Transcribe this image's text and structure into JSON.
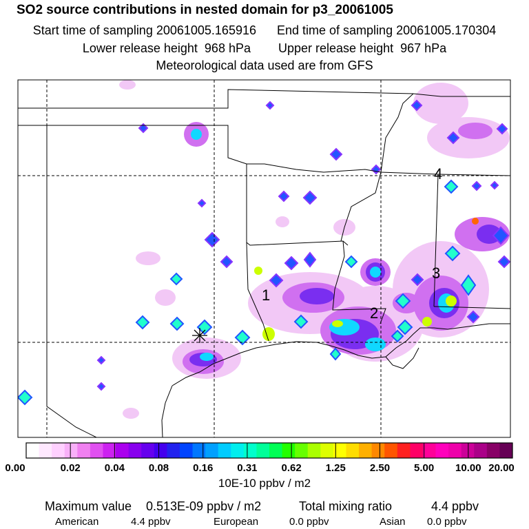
{
  "header": {
    "title": "SO2 source contributions in nested domain for p3_20061005",
    "sampling_line": "Start time of sampling 20061005.165916      End time of sampling 20061005.170304",
    "release_line": "Lower release height  968 hPa        Upper release height  967 hPa",
    "met_line": "Meteorological data used are from GFS"
  },
  "map": {
    "source_labels": [
      "1",
      "2",
      "3",
      "4"
    ]
  },
  "colorbar": {
    "ticks": [
      "0.00",
      "0.02",
      "0.04",
      "0.08",
      "0.16",
      "0.31",
      "0.62",
      "1.25",
      "2.50",
      "5.00",
      "10.00",
      "20.00"
    ],
    "units": "10E-10 ppbv / m2",
    "colors": [
      "#ffffff",
      "#ffe8ff",
      "#ffd0ff",
      "#f8b0f8",
      "#f080f0",
      "#e050f0",
      "#cc22f0",
      "#aa00ee",
      "#8800ee",
      "#6600ee",
      "#4400ee",
      "#2222ee",
      "#0044ff",
      "#0077ff",
      "#00a0ff",
      "#00ccff",
      "#00eeee",
      "#00ffcc",
      "#00ff99",
      "#00ff55",
      "#22ff00",
      "#66ff00",
      "#aaff00",
      "#ddff00",
      "#ffff00",
      "#ffdd00",
      "#ffb000",
      "#ff8800",
      "#ff5500",
      "#ff2020",
      "#ff0066",
      "#ff0099",
      "#ff00bb",
      "#ee00aa",
      "#cc0099",
      "#aa0088",
      "#880066",
      "#660055"
    ]
  },
  "summary": {
    "max_label": "Maximum value",
    "max_value": "0.513E-09 ppbv / m2",
    "total_label": "Total mixing ratio",
    "total_value": "4.4 ppbv",
    "american_label": "American",
    "american_value": "4.4 ppbv",
    "european_label": "European",
    "european_value": "0.0 ppbv",
    "asian_label": "Asian",
    "asian_value": "0.0 ppbv"
  }
}
